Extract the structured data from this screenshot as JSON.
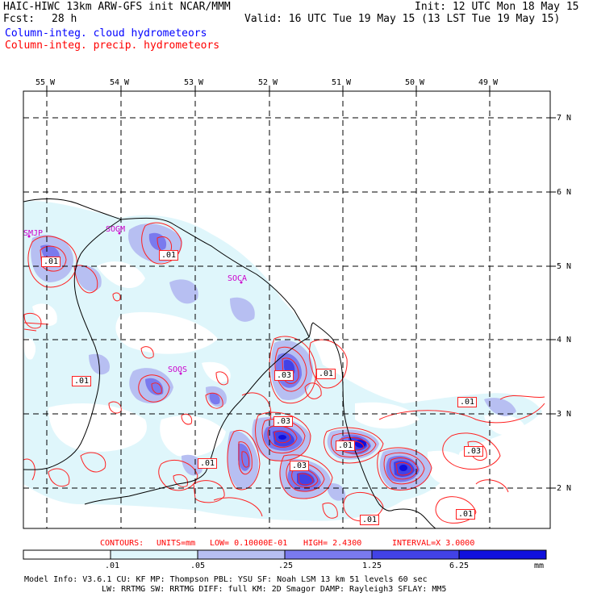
{
  "header": {
    "title": "HAIC-HIWC 13km ARW-GFS init   NCAR/MMM",
    "init": "Init: 12 UTC Mon 18 May 15",
    "fcst_label": "Fcst:",
    "fcst_value": "28 h",
    "valid": "Valid: 16 UTC Tue 19 May 15 (13 LST Tue 19 May 15)",
    "line_blue": "Column-integ. cloud hydrometeors",
    "line_red": "Column-integ. precip. hydrometeors"
  },
  "colors": {
    "blue_text": "#0000ff",
    "red_text": "#ff0000",
    "magenta": "#cc00cc",
    "shade1": "#dff6fb",
    "shade2": "#b7bff2",
    "shade3": "#7a7aee",
    "shade4": "#4242e6",
    "shade5": "#1010dd",
    "contour_red": "#ff2020"
  },
  "axes": {
    "lon_labels": [
      "55 W",
      "54 W",
      "53 W",
      "52 W",
      "51 W",
      "50 W",
      "49 W"
    ],
    "lat_labels": [
      "7 N",
      "6 N",
      "5 N",
      "4 N",
      "3 N",
      "2 N"
    ]
  },
  "places": [
    "SMJP",
    "SOGM",
    "SOCA",
    "SOOS"
  ],
  "contour_labels": [
    ".01",
    ".01",
    ".01",
    ".01",
    ".03",
    ".03",
    ".03",
    ".01",
    ".01",
    ".01",
    ".03",
    ".01",
    ".01"
  ],
  "contour_info": {
    "contours": "CONTOURS:",
    "units": "UNITS=mm",
    "low": "LOW= 0.10000E-01",
    "high": "HIGH=  2.4300",
    "interval": "INTERVAL=X  3.0000"
  },
  "colorbar": {
    "ticks": [
      ".01",
      ".05",
      ".25",
      "1.25",
      "6.25"
    ],
    "unit": "mm"
  },
  "model_info": {
    "line1": "Model Info: V3.6.1    CU: KF      MP: Thompson    PBL: YSU      SF: Noah LSM     13 km   51 levels  60 sec",
    "line2": "LW: RRTMG   SW: RRTMG  DIFF: full   KM: 2D Smagor DAMP: Rayleigh3  SFLAY: MM5"
  }
}
